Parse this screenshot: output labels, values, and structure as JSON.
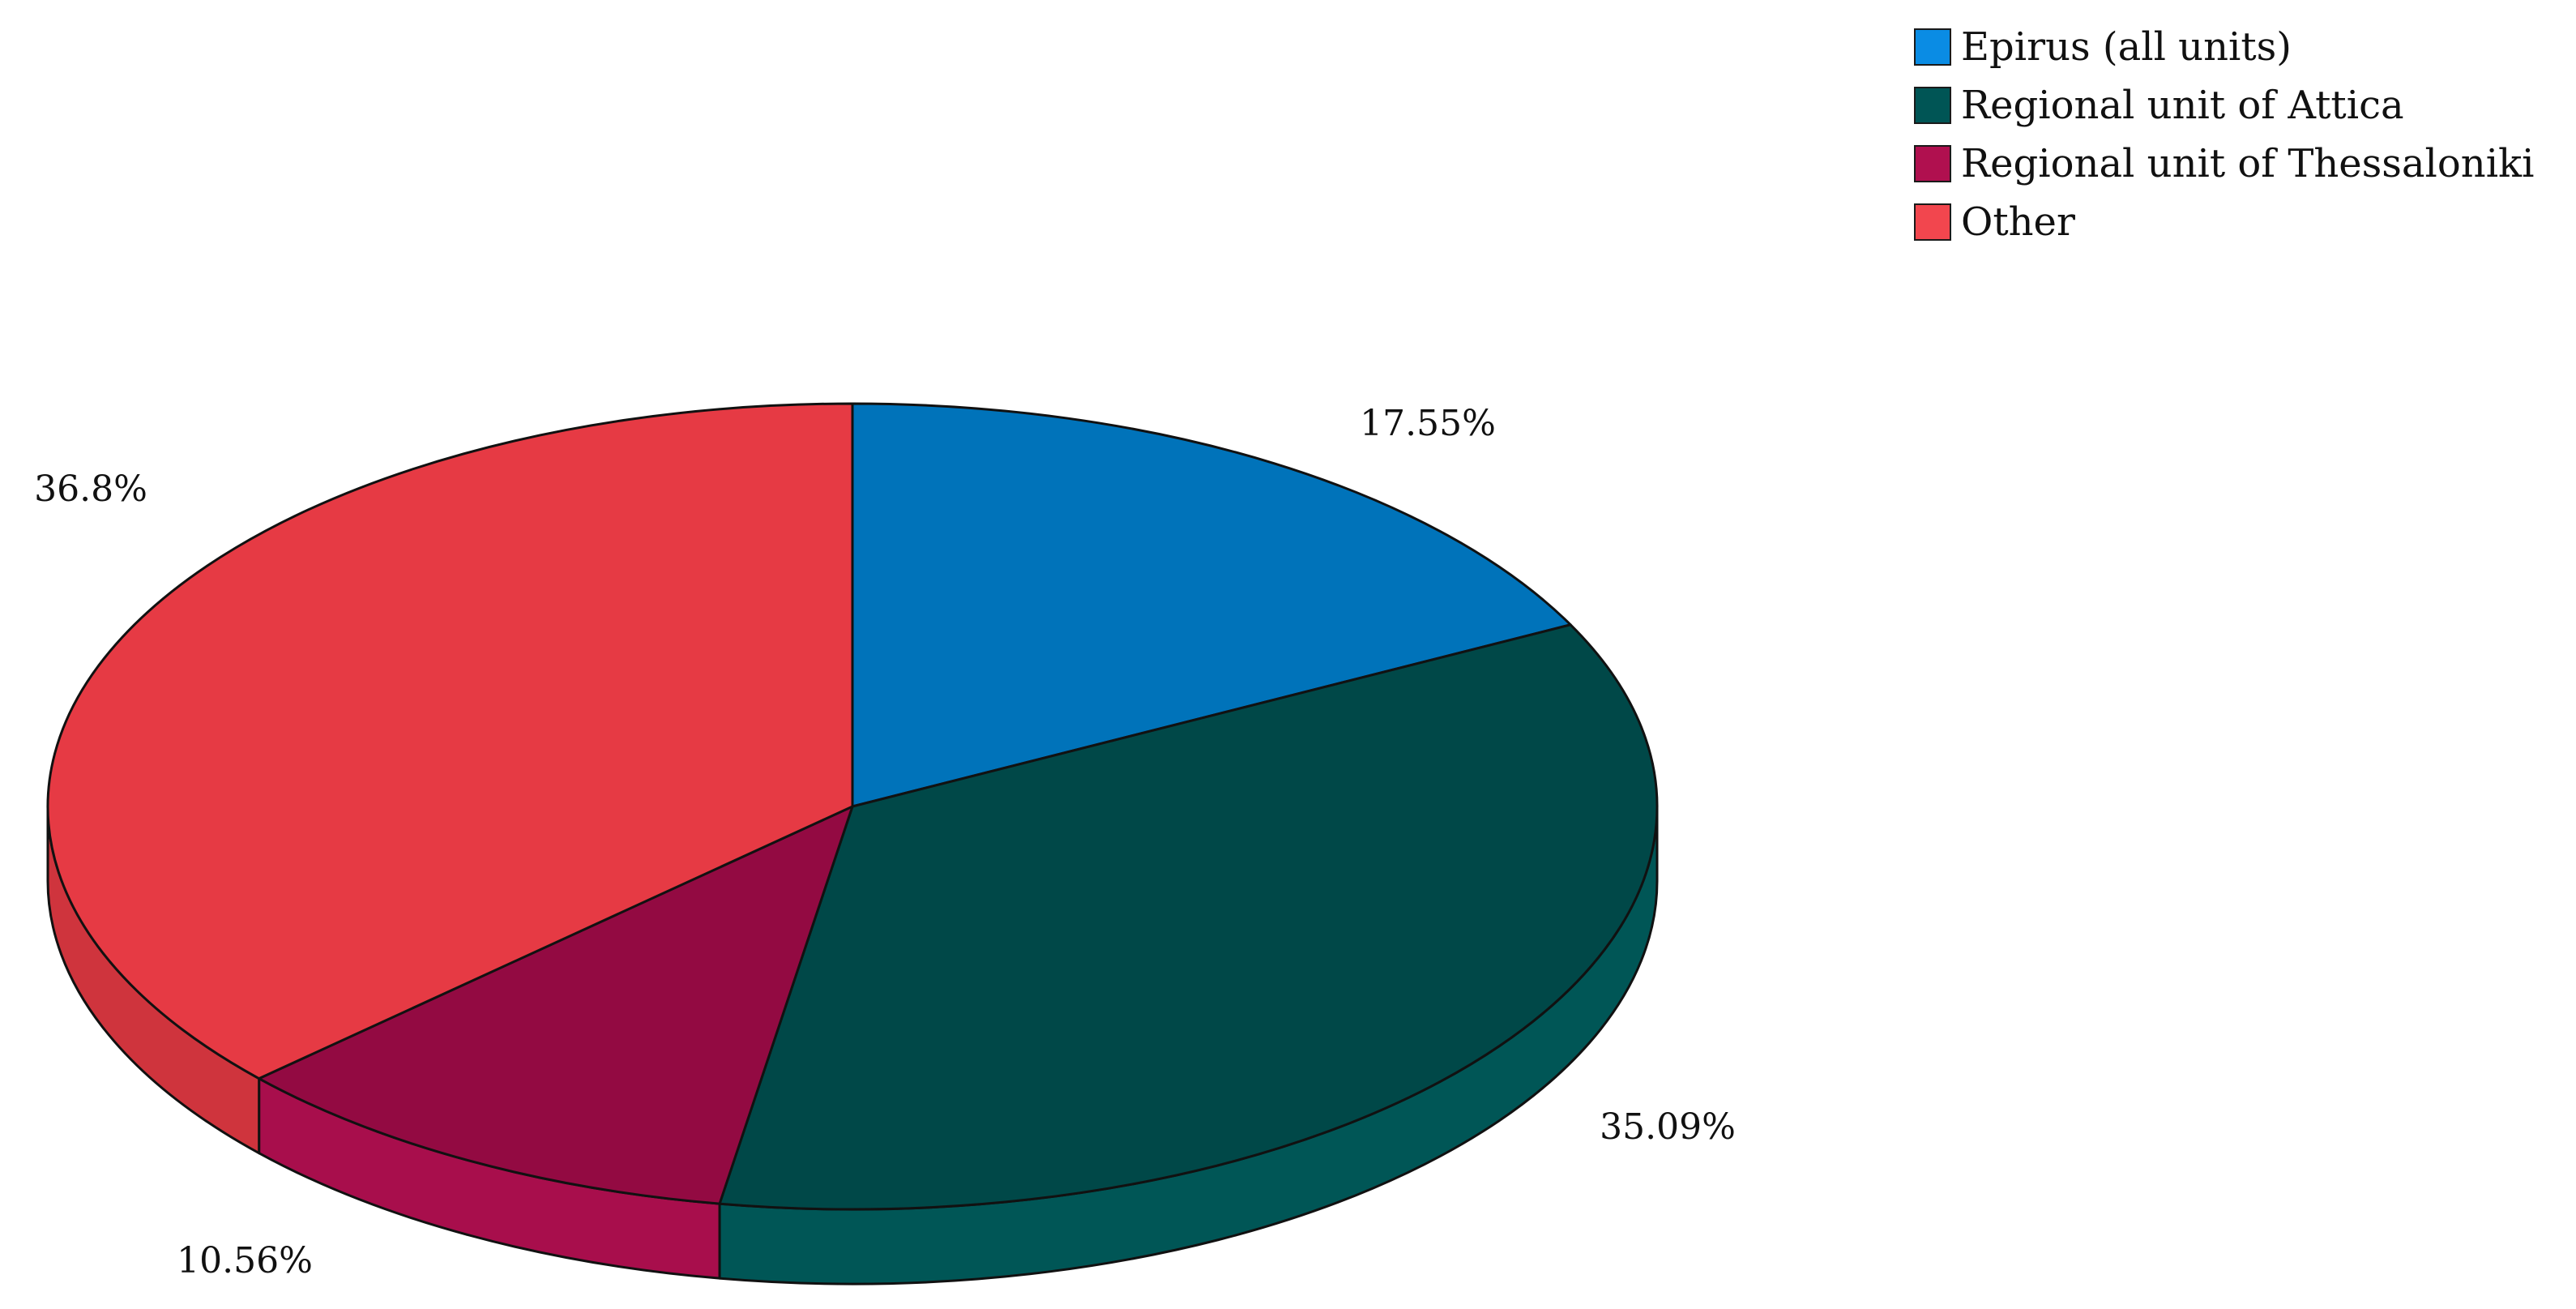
{
  "chart_data": {
    "type": "pie",
    "title": "",
    "legend_position": "top-right",
    "slices": [
      {
        "label": "Epirus (all units)",
        "value": 17.55,
        "value_label": "17.55%",
        "color": "#0073BA",
        "legend_color": "#0A8CE4",
        "side_color": "#0063A0"
      },
      {
        "label": "Regional unit of Attica",
        "value": 35.09,
        "value_label": "35.09%",
        "color": "#004848",
        "legend_color": "#005555",
        "side_color": "#005656"
      },
      {
        "label": "Regional unit of Thessaloniki",
        "value": 10.56,
        "value_label": "10.56%",
        "color": "#930A42",
        "legend_color": "#B0104F",
        "side_color": "#A80E4C"
      },
      {
        "label": "Other",
        "value": 36.8,
        "value_label": "36.8%",
        "color": "#E63A44",
        "legend_color": "#F2464E",
        "side_color": "#CF343D"
      }
    ]
  }
}
